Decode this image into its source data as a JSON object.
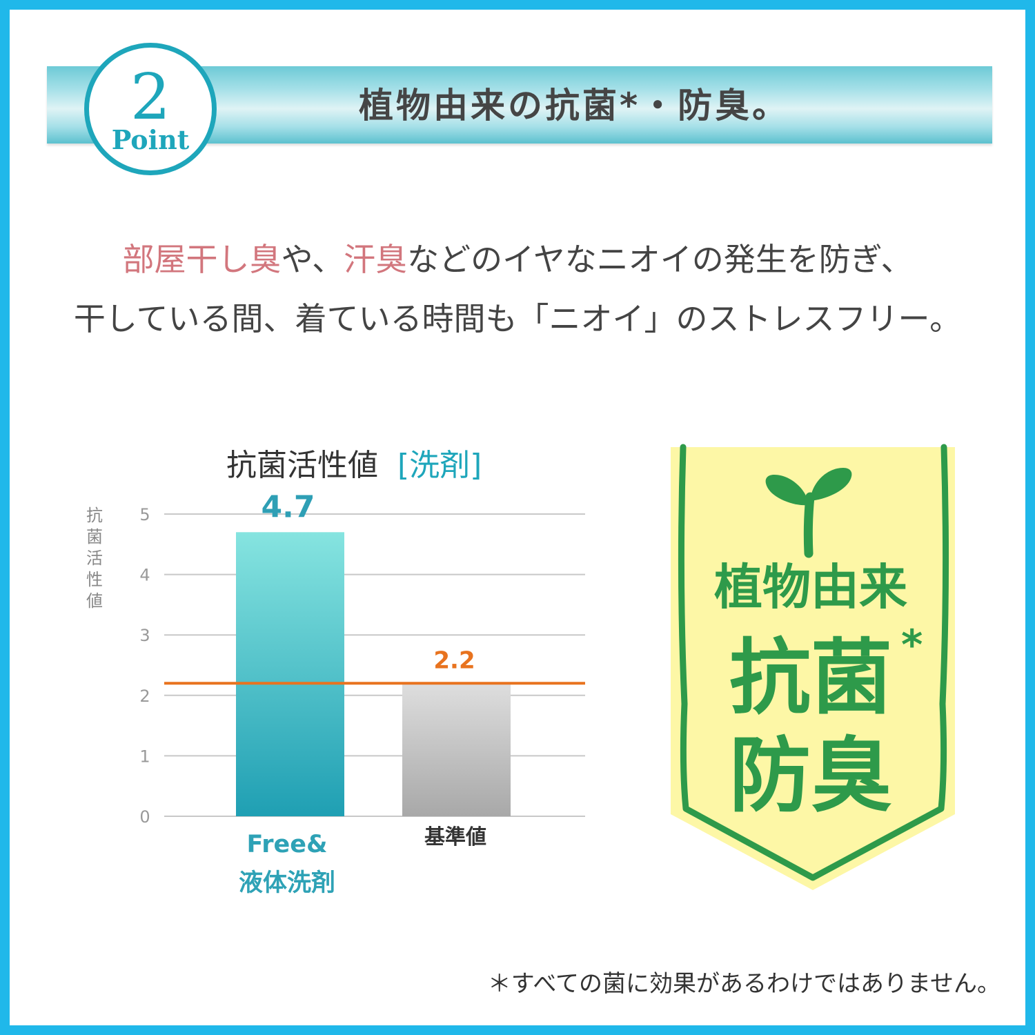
{
  "header": {
    "badge_number": "2",
    "badge_word": "Point",
    "title": "植物由来の抗菌*・防臭。"
  },
  "description": {
    "line1": [
      {
        "text": "部屋干し臭",
        "highlight": true
      },
      {
        "text": "や、",
        "highlight": false
      },
      {
        "text": "汗臭",
        "highlight": true
      },
      {
        "text": "などのイヤなニオイの発生を防ぎ、",
        "highlight": false
      }
    ],
    "line2": "干している間、着ている時間も「ニオイ」のストレスフリー。"
  },
  "chart_data": {
    "type": "bar",
    "title": "抗菌活性値",
    "title_tag": "[洗剤]",
    "ylabel": "抗菌活性値",
    "ylim": [
      0,
      5
    ],
    "yticks": [
      "0",
      "1",
      "2",
      "3",
      "4",
      "5"
    ],
    "grid": true,
    "categories": [
      "Free&\n液体洗剤",
      "基準値"
    ],
    "values": [
      4.7,
      2.2
    ],
    "value_labels": [
      "4.7",
      "2.2"
    ],
    "reference_line": 2.2,
    "colors": {
      "bar0_top": "#86e4e0",
      "bar0_bottom": "#1f9fb3",
      "bar1_top": "#dedede",
      "bar1_bottom": "#a8a8a8",
      "reference": "#e8731f",
      "label0": "#2e9fb5",
      "label1": "#e8731f"
    }
  },
  "banner": {
    "line1": "植物由来",
    "line2": "抗菌",
    "star": "*",
    "line3": "防臭",
    "icon": "sprout-icon",
    "colors": {
      "fill": "#fdf7a6",
      "border": "#2e9a4a"
    }
  },
  "footnote": "＊すべての菌に効果があるわけではありません。"
}
